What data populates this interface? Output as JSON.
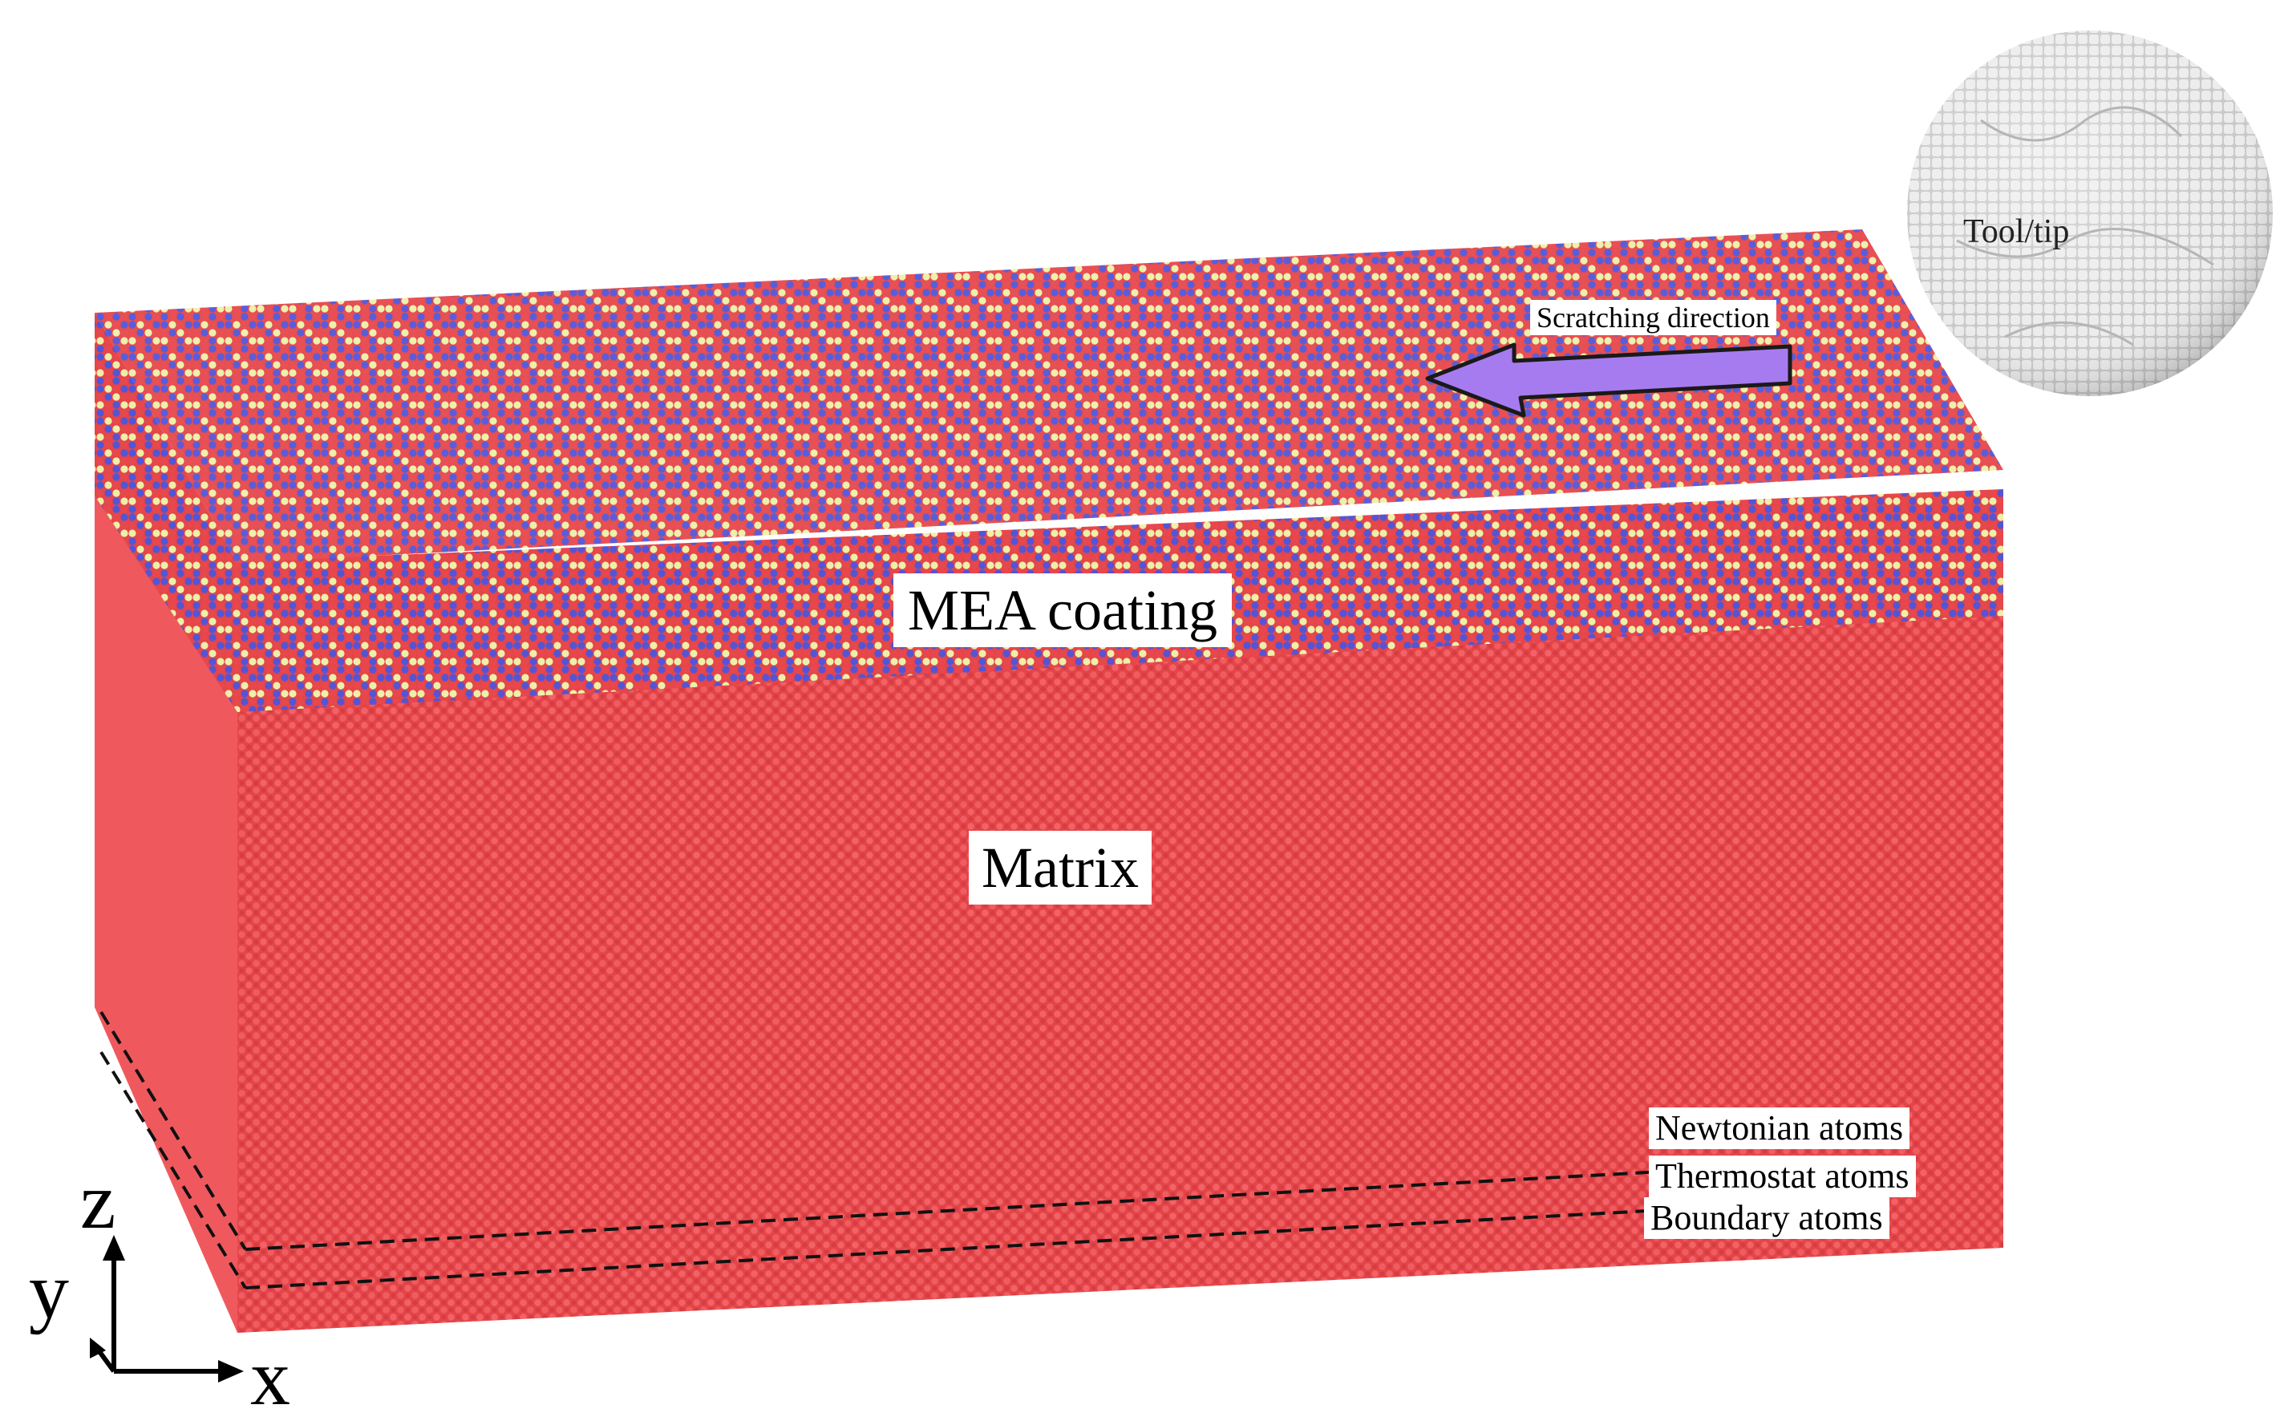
{
  "labels": {
    "coating": "MEA coating",
    "matrix": "Matrix",
    "scratch_direction": "Scratching direction",
    "tool": "Tool/tip",
    "newtonian": "Newtonian atoms",
    "thermostat": "Thermostat atoms",
    "boundary": "Boundary atoms"
  },
  "axes": {
    "z": "z",
    "y": "y",
    "x": "x"
  },
  "colors": {
    "matrix_atom": "#e8474b",
    "matrix_shade": "#c8333a",
    "coating_red": "#e8474b",
    "coating_blue": "#5355d6",
    "coating_yellow": "#eef0a8",
    "arrow_fill": "#a77bf0",
    "tool_atom": "#d9d9d9"
  }
}
